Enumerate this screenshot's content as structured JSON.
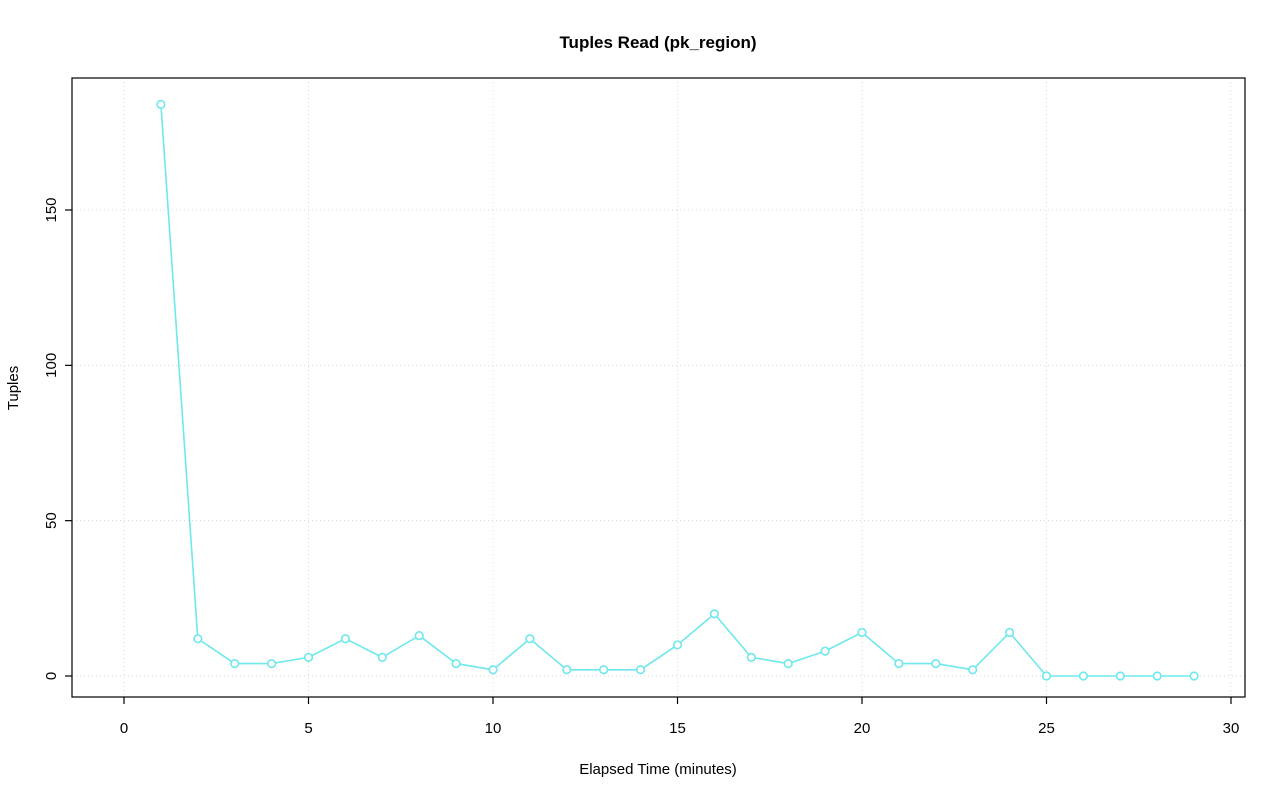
{
  "chart_data": {
    "type": "line",
    "title": "Tuples Read (pk_region)",
    "xlabel": "Elapsed Time (minutes)",
    "ylabel": "Tuples",
    "x": [
      1,
      2,
      3,
      4,
      5,
      6,
      7,
      8,
      9,
      10,
      11,
      12,
      13,
      14,
      15,
      16,
      17,
      18,
      19,
      20,
      21,
      22,
      23,
      24,
      25,
      26,
      27,
      28,
      29
    ],
    "series": [
      {
        "name": "tuples-read",
        "color": "#6FE8EC",
        "marker": "open-circle",
        "values": [
          184,
          12,
          4,
          4,
          6,
          12,
          6,
          13,
          4,
          2,
          12,
          2,
          2,
          2,
          10,
          20,
          6,
          4,
          8,
          14,
          4,
          4,
          2,
          14,
          0,
          0,
          0,
          0,
          0
        ]
      }
    ],
    "xlim": [
      0,
      30
    ],
    "ylim": [
      0,
      150
    ],
    "xticks": [
      0,
      5,
      10,
      15,
      20,
      25,
      30
    ],
    "yticks": [
      0,
      50,
      100,
      150
    ],
    "grid": true,
    "grid_color": "#d8d8d8",
    "axis_color": "#000000",
    "legend": "none"
  }
}
